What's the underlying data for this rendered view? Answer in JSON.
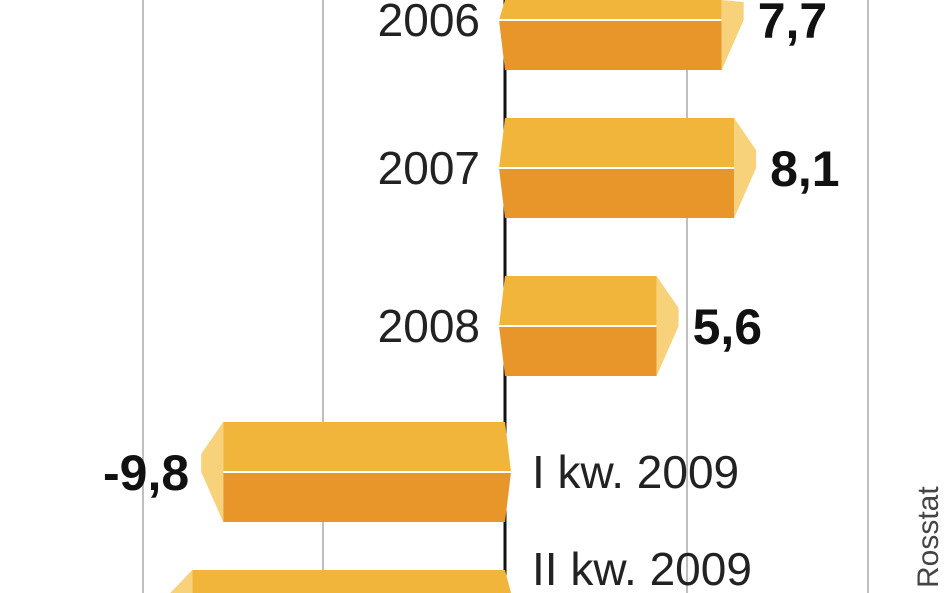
{
  "chart_data": {
    "type": "bar",
    "orientation": "horizontal",
    "categories": [
      "2006",
      "2007",
      "2008",
      "I kw. 2009",
      "II kw. 2009"
    ],
    "values": [
      7.7,
      8.1,
      5.6,
      -9.8,
      -10.8
    ],
    "value_labels": [
      "7,7",
      "8,1",
      "5,6",
      "-9,8",
      ""
    ],
    "grid": true,
    "source": "Rosstat",
    "colors": {
      "top": "#f2b53c",
      "bottom": "#e8952a",
      "end": "#f8d27a",
      "zero_line": "#111111",
      "grid": "#aaaaaa"
    }
  }
}
